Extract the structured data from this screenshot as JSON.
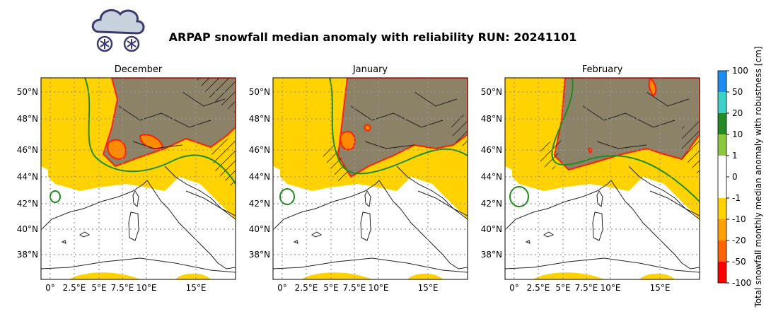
{
  "header": {
    "title": "ARPAP snowfall median anomaly with reliability RUN: 20241101"
  },
  "panels": [
    {
      "title": "December",
      "lat_labels": [
        "50°N",
        "48°N",
        "46°N",
        "44°N",
        "42°N",
        "40°N",
        "38°N"
      ],
      "lon_labels": [
        "0°",
        "2.5°E",
        "5°E",
        "7.5°E",
        "10°E",
        "15°E"
      ]
    },
    {
      "title": "January",
      "lat_labels": [
        "50°N",
        "48°N",
        "46°N",
        "44°N",
        "42°N",
        "40°N",
        "38°N"
      ],
      "lon_labels": [
        "0°",
        "2.5°E",
        "5°E",
        "7.5°E",
        "10°E",
        "15°E"
      ]
    },
    {
      "title": "February",
      "lat_labels": [
        "50°N",
        "48°N",
        "46°N",
        "44°N",
        "42°N",
        "40°N",
        "38°N"
      ],
      "lon_labels": [
        "0°",
        "2.5°E",
        "5°E",
        "7.5°E",
        "10°E",
        "15°E"
      ]
    }
  ],
  "colorbar": {
    "label": "Total snowfall monthly median anomaly with robustness [cm]",
    "ticks": [
      100,
      50,
      20,
      10,
      1,
      0,
      -1,
      -10,
      -20,
      -50,
      -100
    ],
    "colors": [
      "#1e8cf0",
      "#3cd2c8",
      "#228b22",
      "#8cc83c",
      "#ffffff",
      "#ffffff",
      "#ffd200",
      "#ffa000",
      "#ff6400",
      "#ff0000"
    ]
  }
}
